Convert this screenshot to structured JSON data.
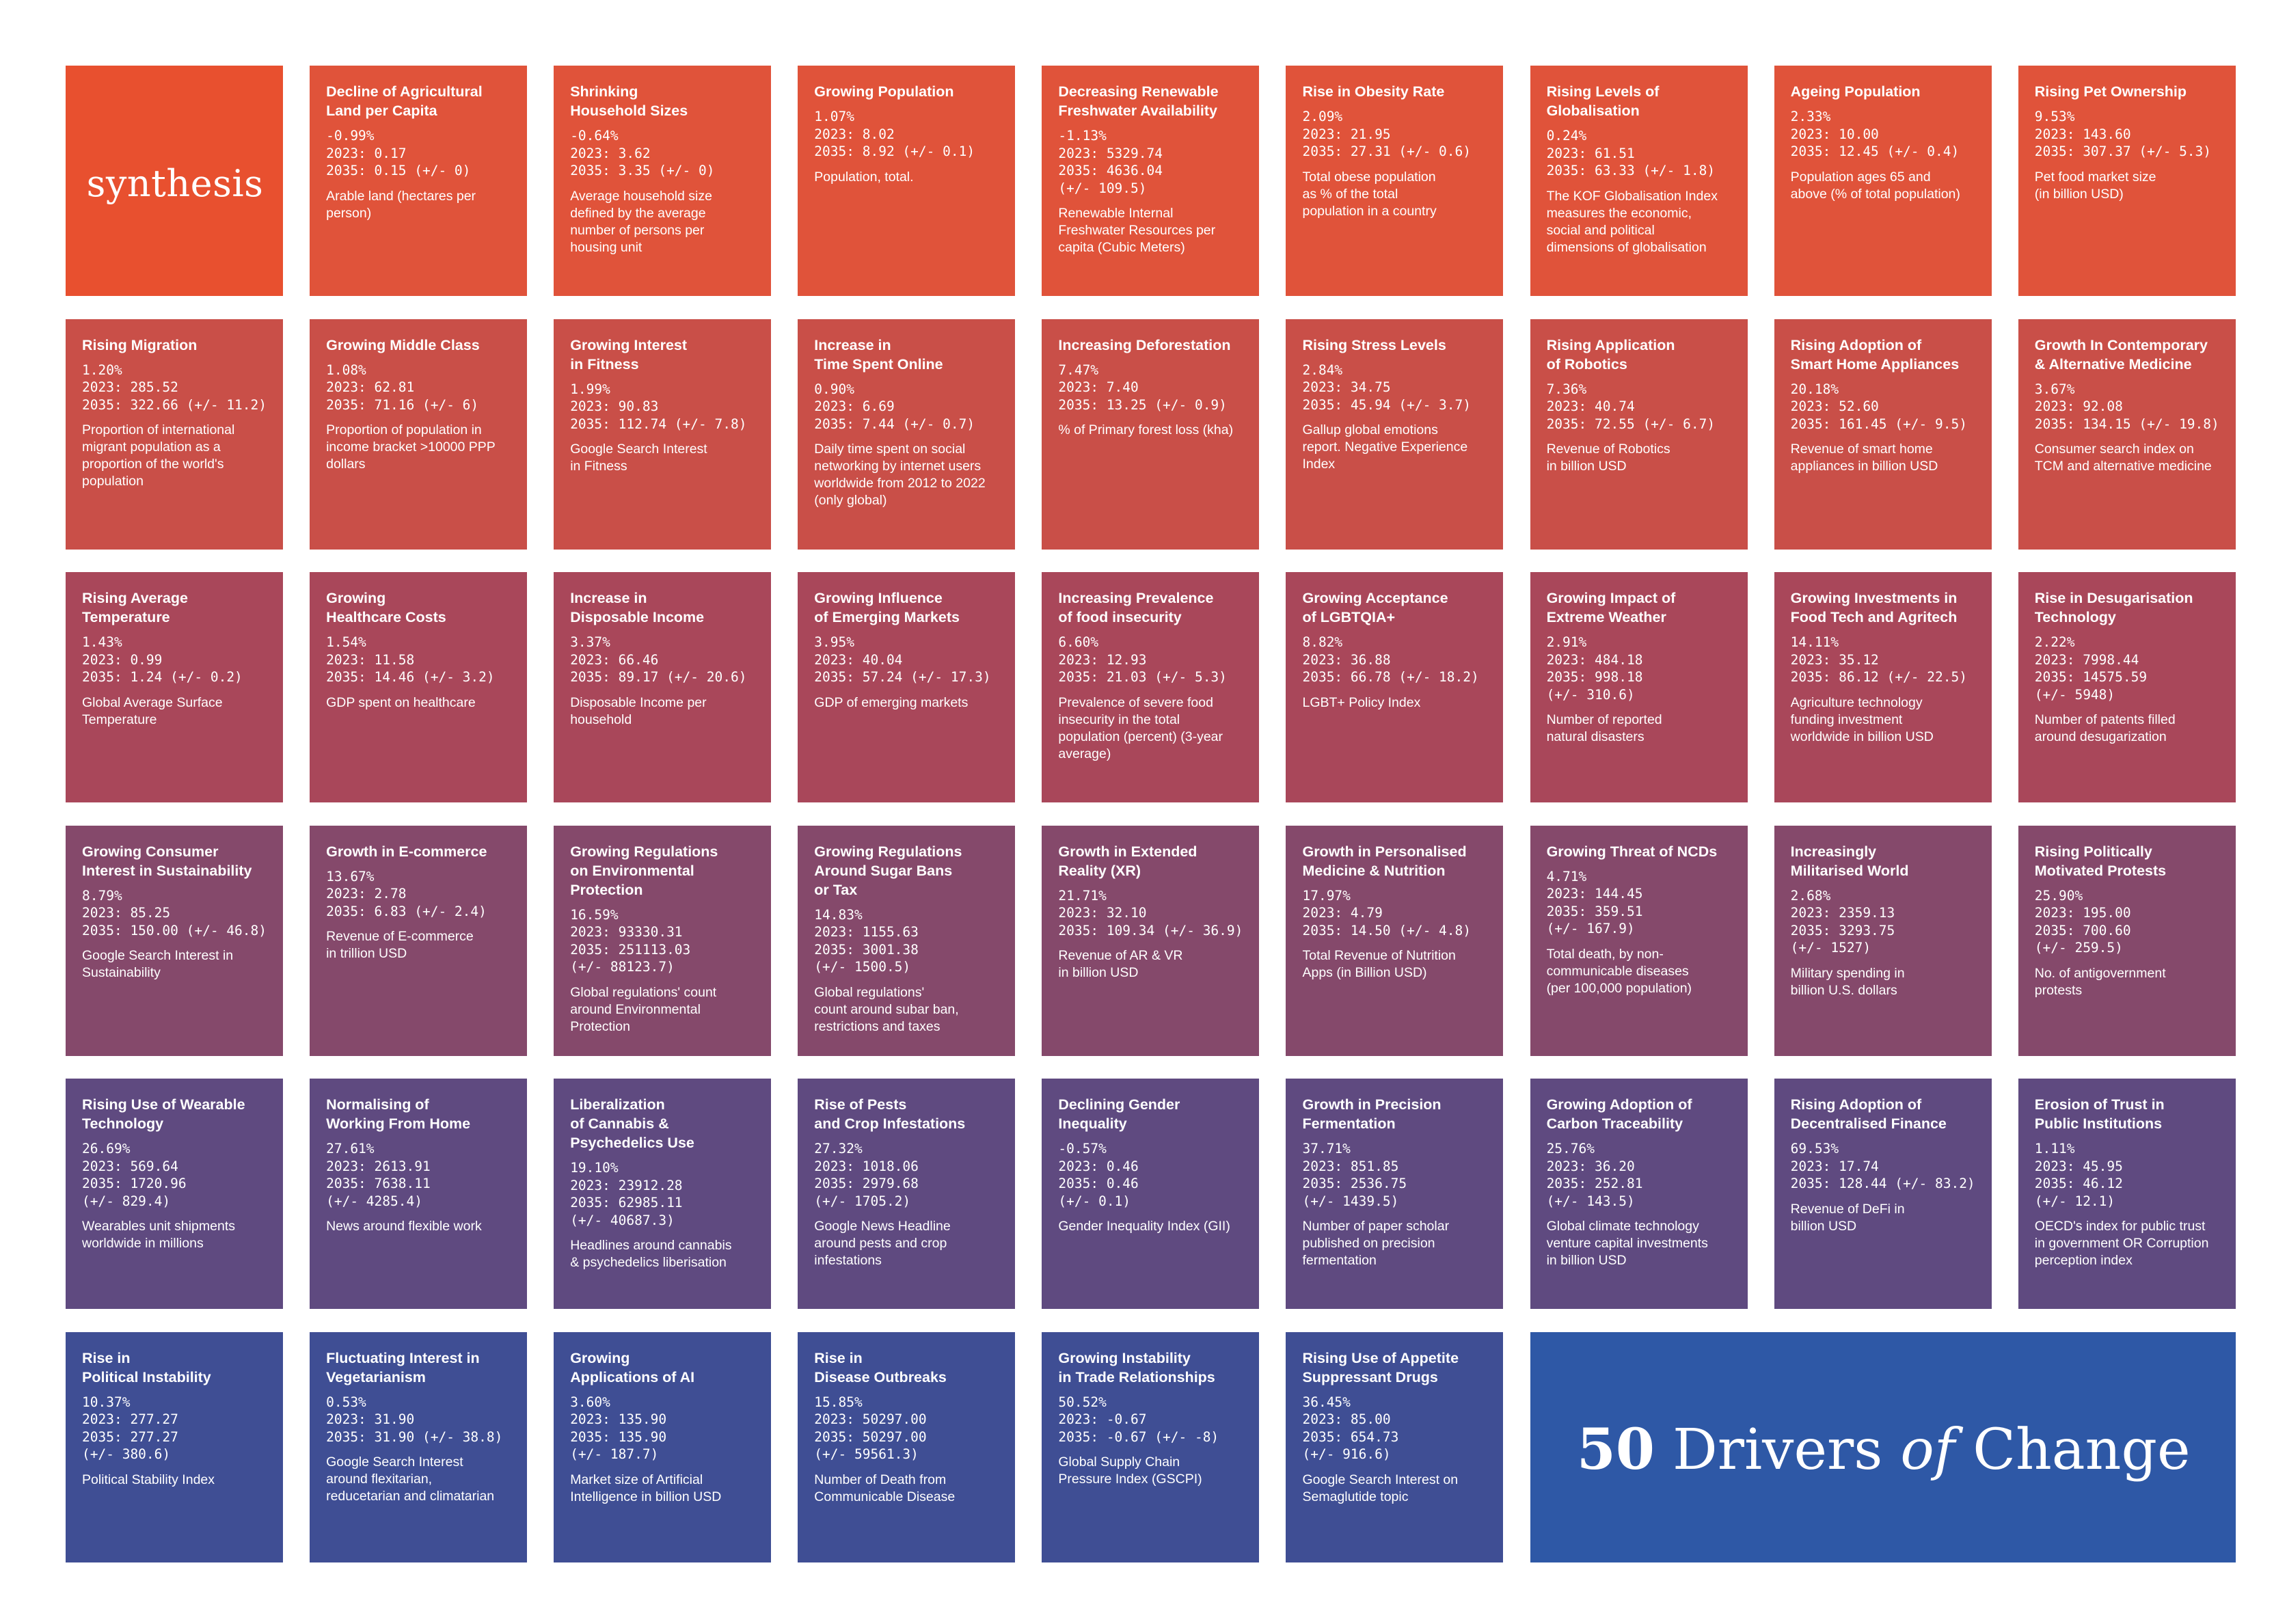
{
  "brand": "synthesis",
  "footer": {
    "number": "50",
    "word1": "Drivers",
    "word2": "of",
    "word3": "Change"
  },
  "colors": {
    "row1": "#e0533a",
    "row2": "#c94f48",
    "row3": "#a9475a",
    "row4": "#85496b",
    "row5": "#5f4a80",
    "row6": "#3f4e94",
    "footer": "#2e58a6",
    "logo": "#e8502f"
  },
  "cards": [
    {
      "title": "Decline of Agricultural\nLand per Capita",
      "stats": "-0.99%\n2023: 0.17\n2035: 0.15 (+/- 0)",
      "desc": "Arable land (hectares per\nperson)"
    },
    {
      "title": "Shrinking\nHousehold Sizes",
      "stats": "-0.64%\n2023: 3.62\n2035: 3.35 (+/- 0)",
      "desc": "Average household size\ndefined by the average\nnumber of persons per\nhousing unit"
    },
    {
      "title": "Growing Population",
      "stats": "1.07%\n2023: 8.02\n2035: 8.92 (+/- 0.1)",
      "desc": "Population, total."
    },
    {
      "title": "Decreasing Renewable\nFreshwater Availability",
      "stats": "-1.13%\n2023: 5329.74\n2035: 4636.04\n(+/- 109.5)",
      "desc": "Renewable Internal\nFreshwater Resources per\ncapita (Cubic Meters)"
    },
    {
      "title": "Rise in Obesity Rate",
      "stats": "2.09%\n2023: 21.95\n2035: 27.31 (+/- 0.6)",
      "desc": "Total obese population\nas % of the total\npopulation in a country"
    },
    {
      "title": "Rising Levels of\nGlobalisation",
      "stats": "0.24%\n2023: 61.51\n2035: 63.33 (+/- 1.8)",
      "desc": "The KOF Globalisation Index\nmeasures the economic,\nsocial and political\ndimensions of globalisation"
    },
    {
      "title": "Ageing Population",
      "stats": "2.33%\n2023: 10.00\n2035: 12.45 (+/- 0.4)",
      "desc": "Population ages 65 and\nabove (% of total population)"
    },
    {
      "title": "Rising Pet Ownership",
      "stats": "9.53%\n2023: 143.60\n2035: 307.37 (+/- 5.3)",
      "desc": "Pet food market size\n(in billion USD)"
    },
    {
      "title": "Rising Migration",
      "stats": "1.20%\n2023: 285.52\n2035: 322.66 (+/- 11.2)",
      "desc": "Proportion of international\nmigrant population as a\nproportion of the world's\npopulation"
    },
    {
      "title": "Growing Middle Class",
      "stats": "1.08%\n2023: 62.81\n2035: 71.16 (+/- 6)",
      "desc": "Proportion of population in\nincome bracket >10000 PPP\ndollars"
    },
    {
      "title": "Growing Interest\nin Fitness",
      "stats": "1.99%\n2023: 90.83\n2035: 112.74 (+/- 7.8)",
      "desc": "Google Search Interest\nin Fitness"
    },
    {
      "title": "Increase in\nTime Spent Online",
      "stats": "0.90%\n2023: 6.69\n2035: 7.44 (+/- 0.7)",
      "desc": "Daily time spent on social\nnetworking by internet users\nworldwide from 2012 to 2022\n(only global)"
    },
    {
      "title": "Increasing Deforestation",
      "stats": "7.47%\n2023: 7.40\n2035: 13.25 (+/- 0.9)",
      "desc": "% of Primary forest loss (kha)"
    },
    {
      "title": "Rising Stress Levels",
      "stats": "2.84%\n2023: 34.75\n2035: 45.94 (+/- 3.7)",
      "desc": "Gallup global emotions\nreport. Negative Experience\nIndex"
    },
    {
      "title": "Rising Application\nof Robotics",
      "stats": "7.36%\n2023: 40.74\n2035: 72.55 (+/- 6.7)",
      "desc": "Revenue of Robotics\nin billion USD"
    },
    {
      "title": "Rising Adoption of\nSmart Home Appliances",
      "stats": "20.18%\n2023: 52.60\n2035: 161.45 (+/- 9.5)",
      "desc": "Revenue of smart home\nappliances in billion USD"
    },
    {
      "title": "Growth In Contemporary\n& Alternative Medicine",
      "stats": "3.67%\n2023: 92.08\n2035: 134.15 (+/- 19.8)",
      "desc": "Consumer search index on\nTCM and alternative medicine"
    },
    {
      "title": "Rising Average\nTemperature",
      "stats": "1.43%\n2023: 0.99\n2035: 1.24 (+/- 0.2)",
      "desc": "Global Average Surface\nTemperature"
    },
    {
      "title": "Growing\nHealthcare Costs",
      "stats": "1.54%\n2023: 11.58\n2035: 14.46 (+/- 3.2)",
      "desc": "GDP spent on healthcare"
    },
    {
      "title": "Increase in\nDisposable Income",
      "stats": "3.37%\n2023: 66.46\n2035: 89.17 (+/- 20.6)",
      "desc": "Disposable Income per\nhousehold"
    },
    {
      "title": "Growing Influence\nof Emerging Markets",
      "stats": "3.95%\n2023: 40.04\n2035: 57.24 (+/- 17.3)",
      "desc": "GDP of emerging markets"
    },
    {
      "title": "Increasing Prevalence\nof food insecurity",
      "stats": "6.60%\n2023: 12.93\n2035: 21.03 (+/- 5.3)",
      "desc": "Prevalence of severe food\ninsecurity in the total\npopulation (percent) (3-year\naverage)"
    },
    {
      "title": "Growing Acceptance\nof LGBTQIA+",
      "stats": "8.82%\n2023: 36.88\n2035: 66.78 (+/- 18.2)",
      "desc": "LGBT+ Policy Index"
    },
    {
      "title": "Growing Impact of\nExtreme Weather",
      "stats": "2.91%\n2023: 484.18\n2035: 998.18\n(+/- 310.6)",
      "desc": "Number of reported\nnatural disasters"
    },
    {
      "title": "Growing Investments in\nFood Tech and Agritech",
      "stats": "14.11%\n2023: 35.12\n2035: 86.12 (+/- 22.5)",
      "desc": "Agriculture technology\nfunding investment\nworldwide in billion USD"
    },
    {
      "title": "Rise in Desugarisation\nTechnology",
      "stats": "2.22%\n2023: 7998.44\n2035: 14575.59\n(+/- 5948)",
      "desc": "Number of patents filled\naround desugarization"
    },
    {
      "title": "Growing Consumer\nInterest in Sustainability",
      "stats": "8.79%\n2023: 85.25\n2035: 150.00 (+/- 46.8)",
      "desc": "Google Search Interest in\nSustainability"
    },
    {
      "title": "Growth in E-commerce",
      "stats": "13.67%\n2023: 2.78\n2035: 6.83 (+/- 2.4)",
      "desc": "Revenue of E-commerce\nin trillion USD"
    },
    {
      "title": "Growing Regulations\non Environmental\nProtection",
      "stats": "16.59%\n2023: 93330.31\n2035: 251113.03\n(+/- 88123.7)",
      "desc": "Global regulations' count\naround Environmental\nProtection"
    },
    {
      "title": "Growing Regulations\nAround Sugar Bans\nor Tax",
      "stats": "14.83%\n2023: 1155.63\n2035: 3001.38\n(+/- 1500.5)",
      "desc": "Global regulations'\ncount around subar ban,\nrestrictions and taxes"
    },
    {
      "title": "Growth in Extended\nReality (XR)",
      "stats": "21.71%\n2023: 32.10\n2035: 109.34 (+/- 36.9)",
      "desc": "Revenue of AR & VR\nin billion USD"
    },
    {
      "title": "Growth in Personalised\nMedicine & Nutrition",
      "stats": "17.97%\n2023: 4.79\n2035: 14.50 (+/- 4.8)",
      "desc": "Total Revenue of Nutrition\nApps (in Billion USD)"
    },
    {
      "title": "Growing Threat of NCDs",
      "stats": "4.71%\n2023: 144.45\n2035: 359.51\n(+/- 167.9)",
      "desc": "Total death, by non-\ncommunicable diseases\n(per 100,000 population)"
    },
    {
      "title": "Increasingly\nMilitarised World",
      "stats": "2.68%\n2023: 2359.13\n2035: 3293.75\n(+/- 1527)",
      "desc": "Military spending in\nbillion U.S. dollars"
    },
    {
      "title": "Rising Politically\nMotivated Protests",
      "stats": "25.90%\n2023: 195.00\n2035: 700.60\n(+/- 259.5)",
      "desc": "No. of antigovernment\nprotests"
    },
    {
      "title": "Rising Use of Wearable\nTechnology",
      "stats": "26.69%\n2023: 569.64\n2035: 1720.96\n(+/- 829.4)",
      "desc": "Wearables unit shipments\nworldwide in millions"
    },
    {
      "title": "Normalising of\nWorking From Home",
      "stats": "27.61%\n2023: 2613.91\n2035: 7638.11\n(+/- 4285.4)",
      "desc": "News around flexible work"
    },
    {
      "title": "Liberalization\nof Cannabis &\nPsychedelics Use",
      "stats": "19.10%\n2023: 23912.28\n2035: 62985.11\n(+/- 40687.3)",
      "desc": "Headlines around cannabis\n& psychedelics liberisation"
    },
    {
      "title": "Rise of Pests\nand Crop Infestations",
      "stats": "27.32%\n2023: 1018.06\n2035: 2979.68\n(+/- 1705.2)",
      "desc": "Google News Headline\naround pests and crop\ninfestations"
    },
    {
      "title": "Declining Gender\nInequality",
      "stats": "-0.57%\n2023: 0.46\n2035: 0.46\n(+/- 0.1)",
      "desc": "Gender Inequality Index (GII)"
    },
    {
      "title": "Growth in Precision\nFermentation",
      "stats": "37.71%\n2023: 851.85\n2035: 2536.75\n(+/- 1439.5)",
      "desc": "Number of paper scholar\npublished on precision\nfermentation"
    },
    {
      "title": "Growing Adoption of\nCarbon Traceability",
      "stats": "25.76%\n2023: 36.20\n2035: 252.81\n(+/- 143.5)",
      "desc": "Global climate technology\nventure capital investments\nin billion USD"
    },
    {
      "title": "Rising Adoption of\nDecentralised Finance",
      "stats": "69.53%\n2023: 17.74\n2035: 128.44 (+/- 83.2)",
      "desc": "Revenue of DeFi in\nbillion USD"
    },
    {
      "title": "Erosion of Trust in\nPublic Institutions",
      "stats": "1.11%\n2023: 45.95\n2035: 46.12\n(+/- 12.1)",
      "desc": "OECD's index for public trust\nin government OR Corruption\nperception index"
    },
    {
      "title": "Rise in\nPolitical Instability",
      "stats": "10.37%\n2023: 277.27\n2035: 277.27\n(+/- 380.6)",
      "desc": "Political Stability Index"
    },
    {
      "title": "Fluctuating Interest in\nVegetarianism",
      "stats": "0.53%\n2023: 31.90\n2035: 31.90 (+/- 38.8)",
      "desc": "Google Search Interest\naround flexitarian,\nreducetarian and climatarian"
    },
    {
      "title": "Growing\nApplications of AI",
      "stats": "3.60%\n2023: 135.90\n2035: 135.90\n(+/- 187.7)",
      "desc": "Market size of Artificial\nIntelligence in billion USD"
    },
    {
      "title": "Rise in\nDisease Outbreaks",
      "stats": "15.85%\n2023: 50297.00\n2035: 50297.00\n(+/- 59561.3)",
      "desc": "Number of Death from\nCommunicable Disease"
    },
    {
      "title": "Growing Instability\nin Trade Relationships",
      "stats": "50.52%\n2023: -0.67\n2035: -0.67 (+/- -8)",
      "desc": "Global Supply Chain\nPressure Index (GSCPI)"
    },
    {
      "title": "Rising Use of Appetite\nSuppressant Drugs",
      "stats": "36.45%\n2023: 85.00\n2035: 654.73\n(+/- 916.6)",
      "desc": "Google Search Interest on\nSemaglutide topic"
    }
  ]
}
